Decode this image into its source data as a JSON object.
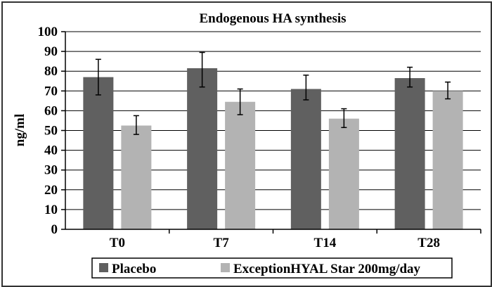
{
  "chart_data": {
    "type": "bar",
    "title": "Endogenous HA synthesis",
    "xlabel": "",
    "ylabel": "ng/ml",
    "ylim": [
      0,
      100
    ],
    "yticks": [
      0,
      10,
      20,
      30,
      40,
      50,
      60,
      70,
      80,
      90,
      100
    ],
    "categories": [
      "T0",
      "T7",
      "T14",
      "T28"
    ],
    "grid": true,
    "legend": "bottom",
    "series": [
      {
        "name": "Placebo",
        "color": "#606060",
        "values": [
          77,
          81.5,
          71,
          76.5
        ],
        "error_low": [
          68,
          72,
          65.5,
          72
        ],
        "error_high": [
          86,
          89.5,
          78,
          82
        ]
      },
      {
        "name": "ExceptionHYAL Star 200mg/day",
        "color": "#b3b3b3",
        "values": [
          52.5,
          64.5,
          56,
          70
        ],
        "error_low": [
          48,
          58,
          51.5,
          66
        ],
        "error_high": [
          57.5,
          71,
          61,
          74.5
        ]
      }
    ]
  }
}
